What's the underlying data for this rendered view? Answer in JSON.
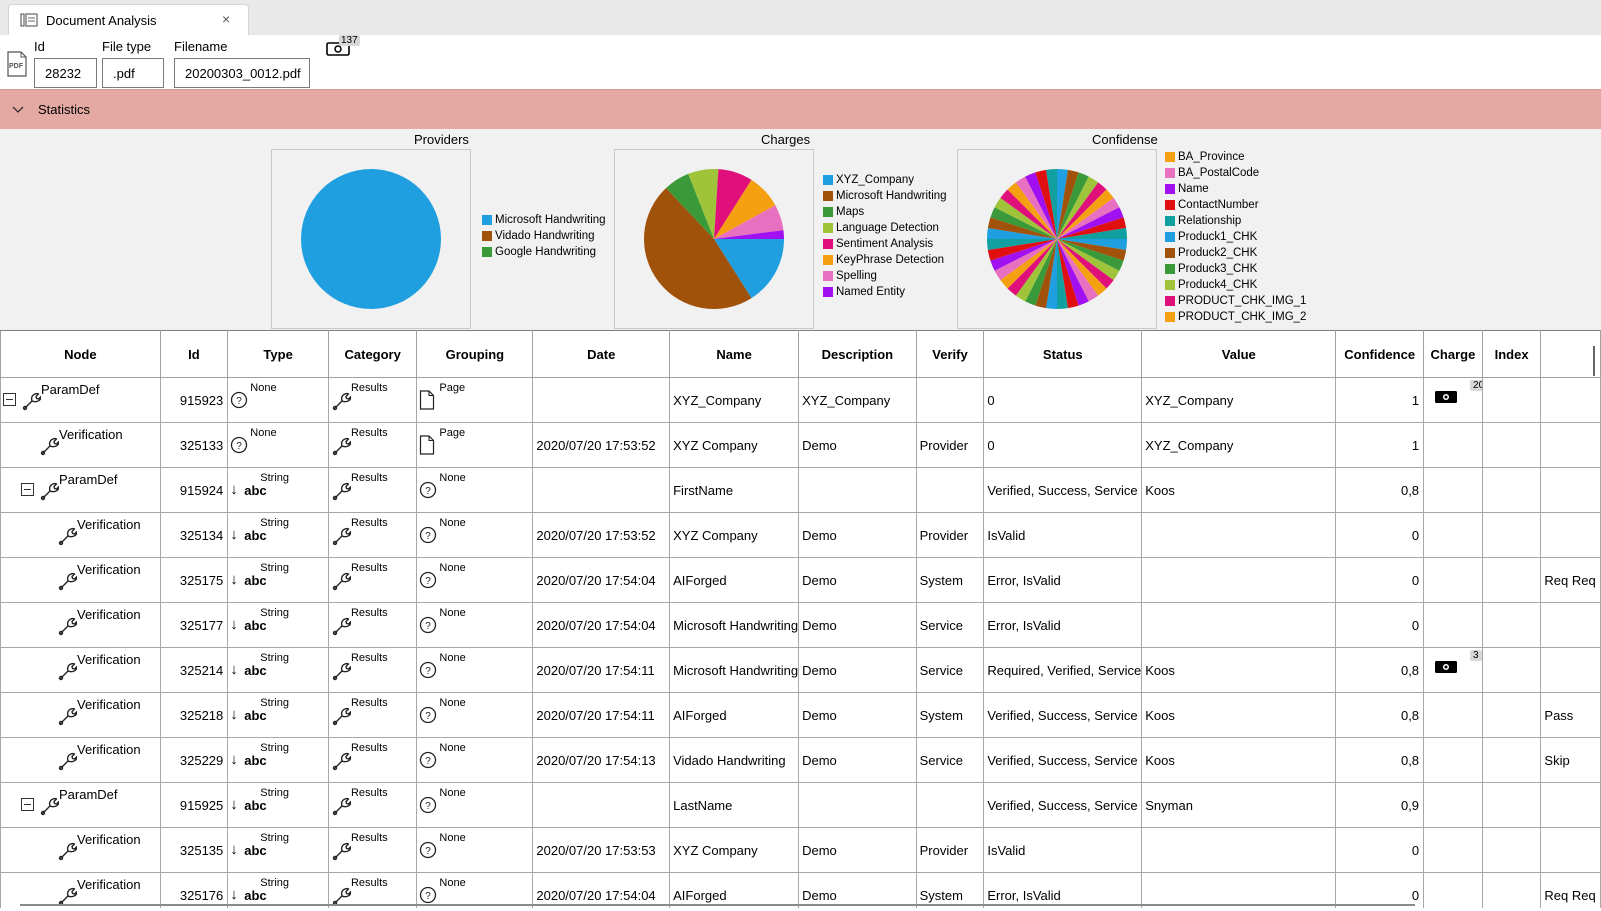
{
  "tab": {
    "title": "Document Analysis",
    "close": "×"
  },
  "header": {
    "id_label": "Id",
    "id_value": "28232",
    "filetype_label": "File type",
    "filetype_value": ".pdf",
    "filename_label": "Filename",
    "filename_value": "20200303_0012.pdf",
    "charge_count": "137"
  },
  "statistics": {
    "label": "Statistics"
  },
  "charts": {
    "providers": {
      "title": "Providers",
      "legend": [
        {
          "name": "Microsoft Handwriting",
          "color": "#1f9fe0"
        },
        {
          "name": "Vidado Handwriting",
          "color": "#a0520a"
        },
        {
          "name": "Google Handwriting",
          "color": "#3a9a3a"
        }
      ],
      "slices": [
        {
          "name": "Microsoft Handwriting",
          "value": 100,
          "color": "#1f9fe0"
        }
      ]
    },
    "charges": {
      "title": "Charges",
      "legend": [
        {
          "name": "XYZ_Company",
          "color": "#1f9fe0"
        },
        {
          "name": "Microsoft Handwriting",
          "color": "#a0520a"
        },
        {
          "name": "Maps",
          "color": "#3a9a3a"
        },
        {
          "name": "Language Detection",
          "color": "#9fc43a"
        },
        {
          "name": "Sentiment Analysis",
          "color": "#e0107a"
        },
        {
          "name": "KeyPhrase Detection",
          "color": "#f4a010"
        },
        {
          "name": "Spelling",
          "color": "#e870c0"
        },
        {
          "name": "Named Entity",
          "color": "#a010f0"
        }
      ],
      "slices": [
        {
          "name": "XYZ_Company",
          "value": 16,
          "color": "#1f9fe0"
        },
        {
          "name": "Microsoft Handwriting",
          "value": 47,
          "color": "#a0520a"
        },
        {
          "name": "Maps",
          "value": 6,
          "color": "#3a9a3a"
        },
        {
          "name": "Language Detection",
          "value": 7,
          "color": "#9fc43a"
        },
        {
          "name": "Sentiment Analysis",
          "value": 8,
          "color": "#e0107a"
        },
        {
          "name": "KeyPhrase Detection",
          "value": 8,
          "color": "#f4a010"
        },
        {
          "name": "Spelling",
          "value": 6,
          "color": "#e870c0"
        },
        {
          "name": "Named Entity",
          "value": 2,
          "color": "#a010f0"
        }
      ]
    },
    "confidence": {
      "title": "Confidense",
      "legend": [
        {
          "name": "BA_Province",
          "color": "#f4a010"
        },
        {
          "name": "BA_PostalCode",
          "color": "#e870c0"
        },
        {
          "name": "Name",
          "color": "#a010f0"
        },
        {
          "name": "ContactNumber",
          "color": "#e01010"
        },
        {
          "name": "Relationship",
          "color": "#10a0a0"
        },
        {
          "name": "Produck1_CHK",
          "color": "#1f9fe0"
        },
        {
          "name": "Produck2_CHK",
          "color": "#a0520a"
        },
        {
          "name": "Produck3_CHK",
          "color": "#3a9a3a"
        },
        {
          "name": "Produck4_CHK",
          "color": "#9fc43a"
        },
        {
          "name": "PRODUCT_CHK_IMG_1",
          "color": "#e0107a"
        },
        {
          "name": "PRODUCT_CHK_IMG_2",
          "color": "#f4a010"
        }
      ],
      "palette": [
        "#1f9fe0",
        "#a0520a",
        "#3a9a3a",
        "#9fc43a",
        "#e0107a",
        "#f4a010",
        "#e870c0",
        "#a010f0",
        "#e01010",
        "#10a0a0"
      ]
    }
  },
  "grid": {
    "columns": [
      "Node",
      "Id",
      "Type",
      "Category",
      "Grouping",
      "Date",
      "Name",
      "Description",
      "Verify",
      "Status",
      "Value",
      "Confidence",
      "Charge",
      "Index",
      ""
    ],
    "rows": [
      {
        "level": 0,
        "expander": true,
        "node": "ParamDef",
        "id": "915923",
        "typeicon": "q",
        "type": "None",
        "category": "Results",
        "groupicon": "page",
        "grouping": "Page",
        "date": "",
        "name": "XYZ_Company",
        "description": "XYZ_Company",
        "verify": "",
        "status": "0",
        "value": "XYZ_Company",
        "confidence": "1",
        "charge": "20",
        "extra": ""
      },
      {
        "level": 1,
        "expander": false,
        "node": "Verification",
        "id": "325133",
        "typeicon": "q",
        "type": "None",
        "category": "Results",
        "groupicon": "page",
        "grouping": "Page",
        "date": "2020/07/20 17:53:52",
        "name": "XYZ Company",
        "description": "Demo",
        "verify": "Provider",
        "status": "0",
        "value": "XYZ_Company",
        "confidence": "1",
        "charge": "",
        "extra": ""
      },
      {
        "level": 1,
        "expander": true,
        "node": "ParamDef",
        "id": "915924",
        "typeicon": "abc",
        "type": "String",
        "category": "Results",
        "groupicon": "q",
        "grouping": "None",
        "date": "",
        "name": "FirstName",
        "description": "",
        "verify": "",
        "status": "Verified, Success, Service",
        "value": "Koos",
        "confidence": "0,8",
        "charge": "",
        "extra": ""
      },
      {
        "level": 2,
        "expander": false,
        "node": "Verification",
        "id": "325134",
        "typeicon": "abc",
        "type": "String",
        "category": "Results",
        "groupicon": "q",
        "grouping": "None",
        "date": "2020/07/20 17:53:52",
        "name": "XYZ Company",
        "description": "Demo",
        "verify": "Provider",
        "status": "IsValid",
        "value": "",
        "confidence": "0",
        "charge": "",
        "extra": ""
      },
      {
        "level": 2,
        "expander": false,
        "node": "Verification",
        "id": "325175",
        "typeicon": "abc",
        "type": "String",
        "category": "Results",
        "groupicon": "q",
        "grouping": "None",
        "date": "2020/07/20 17:54:04",
        "name": "AIForged",
        "description": "Demo",
        "verify": "System",
        "status": "Error, IsValid",
        "value": "",
        "confidence": "0",
        "charge": "",
        "extra": "Req Req"
      },
      {
        "level": 2,
        "expander": false,
        "node": "Verification",
        "id": "325177",
        "typeicon": "abc",
        "type": "String",
        "category": "Results",
        "groupicon": "q",
        "grouping": "None",
        "date": "2020/07/20 17:54:04",
        "name": "Microsoft Handwriting",
        "description": "Demo",
        "verify": "Service",
        "status": "Error, IsValid",
        "value": "",
        "confidence": "0",
        "charge": "",
        "extra": ""
      },
      {
        "level": 2,
        "expander": false,
        "node": "Verification",
        "id": "325214",
        "typeicon": "abc",
        "type": "String",
        "category": "Results",
        "groupicon": "q",
        "grouping": "None",
        "date": "2020/07/20 17:54:11",
        "name": "Microsoft Handwriting",
        "description": "Demo",
        "verify": "Service",
        "status": "Required, Verified, Service",
        "value": "Koos",
        "confidence": "0,8",
        "charge": "3",
        "extra": ""
      },
      {
        "level": 2,
        "expander": false,
        "node": "Verification",
        "id": "325218",
        "typeicon": "abc",
        "type": "String",
        "category": "Results",
        "groupicon": "q",
        "grouping": "None",
        "date": "2020/07/20 17:54:11",
        "name": "AIForged",
        "description": "Demo",
        "verify": "System",
        "status": "Verified, Success, Service",
        "value": "Koos",
        "confidence": "0,8",
        "charge": "",
        "extra": "Pass"
      },
      {
        "level": 2,
        "expander": false,
        "node": "Verification",
        "id": "325229",
        "typeicon": "abc",
        "type": "String",
        "category": "Results",
        "groupicon": "q",
        "grouping": "None",
        "date": "2020/07/20 17:54:13",
        "name": "Vidado Handwriting",
        "description": "Demo",
        "verify": "Service",
        "status": "Verified, Success, Service",
        "value": "Koos",
        "confidence": "0,8",
        "charge": "",
        "extra": "Skip"
      },
      {
        "level": 1,
        "expander": true,
        "node": "ParamDef",
        "id": "915925",
        "typeicon": "abc",
        "type": "String",
        "category": "Results",
        "groupicon": "q",
        "grouping": "None",
        "date": "",
        "name": "LastName",
        "description": "",
        "verify": "",
        "status": "Verified, Success, Service",
        "value": "Snyman",
        "confidence": "0,9",
        "charge": "",
        "extra": ""
      },
      {
        "level": 2,
        "expander": false,
        "node": "Verification",
        "id": "325135",
        "typeicon": "abc",
        "type": "String",
        "category": "Results",
        "groupicon": "q",
        "grouping": "None",
        "date": "2020/07/20 17:53:53",
        "name": "XYZ Company",
        "description": "Demo",
        "verify": "Provider",
        "status": "IsValid",
        "value": "",
        "confidence": "0",
        "charge": "",
        "extra": ""
      },
      {
        "level": 2,
        "expander": false,
        "node": "Verification",
        "id": "325176",
        "typeicon": "abc",
        "type": "String",
        "category": "Results",
        "groupicon": "q",
        "grouping": "None",
        "date": "2020/07/20 17:54:04",
        "name": "AIForged",
        "description": "Demo",
        "verify": "System",
        "status": "Error, IsValid",
        "value": "",
        "confidence": "0",
        "charge": "",
        "extra": "Req Req"
      }
    ]
  }
}
